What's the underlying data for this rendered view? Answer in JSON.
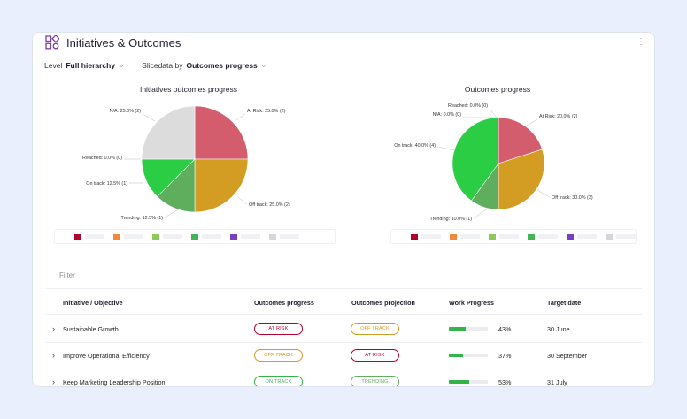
{
  "header": {
    "title": "Initiatives & Outcomes",
    "menu_icon": "kebab-icon"
  },
  "filters": {
    "level_label": "Level",
    "level_value": "Full hierarchy",
    "slice_label": "Slicedata by",
    "slice_value": "Outcomes progress"
  },
  "colors": {
    "reached": "#b5002e",
    "at_risk": "#d45d6d",
    "off_track": "#d39c22",
    "trending": "#5fae5d",
    "on_track": "#2bcd45",
    "na": "#dcdcdc",
    "legend": [
      "#b5002e",
      "#ef8a3c",
      "#8dc95a",
      "#43b552",
      "#7a3fc0",
      "#d5d7db"
    ]
  },
  "chart_data": [
    {
      "type": "pie",
      "title": "Initiatives outcomes progress",
      "categories": [
        "At Risk",
        "Off track",
        "Trending",
        "On track",
        "Reached",
        "N/A"
      ],
      "values": [
        25.0,
        25.0,
        12.5,
        12.5,
        0.0,
        25.0
      ],
      "labels": [
        "At Risk: 25.0% (2)",
        "Off track: 25.0% (2)",
        "Trending: 12.5% (1)",
        "On track: 12.5% (1)",
        "Reached: 0.0% (0)",
        "N/A: 25.0% (2)"
      ]
    },
    {
      "type": "pie",
      "title": "Outcomes progress",
      "categories": [
        "At Risk",
        "Off track",
        "Trending",
        "On track",
        "Reached",
        "N/A"
      ],
      "values": [
        20.0,
        30.0,
        10.0,
        40.0,
        0.0,
        0.0
      ],
      "labels": [
        "At Risk: 20.0% (2)",
        "Off track: 30.0% (3)",
        "Trending: 10.0% (1)",
        "On track: 40.0% (4)",
        "Reached: 0.0% (0)",
        "N/A: 0.0% (0)"
      ]
    }
  ],
  "table": {
    "filter_placeholder": "Filter",
    "columns": [
      "Initiative / Objective",
      "Outcomes progress",
      "Outcomes projection",
      "Work Progress",
      "Target date"
    ],
    "rows": [
      {
        "name": "Sustainable Growth",
        "progress": "AT RISK",
        "progress_color": "#b5002e",
        "projection": "OFF TRACK",
        "projection_color": "#d39c22",
        "work": 43,
        "work_label": "43%",
        "date": "30 June"
      },
      {
        "name": "Improve Operational Efficiency",
        "progress": "OFF TRACK",
        "progress_color": "#d39c22",
        "projection": "AT RISK",
        "projection_color": "#b5002e",
        "work": 37,
        "work_label": "37%",
        "date": "30 September"
      },
      {
        "name": "Keep Marketing Leadership Position",
        "progress": "ON TRACK",
        "progress_color": "#34b34a",
        "projection": "TRENDING",
        "projection_color": "#5fae5d",
        "work": 53,
        "work_label": "53%",
        "date": "31 July"
      }
    ]
  }
}
